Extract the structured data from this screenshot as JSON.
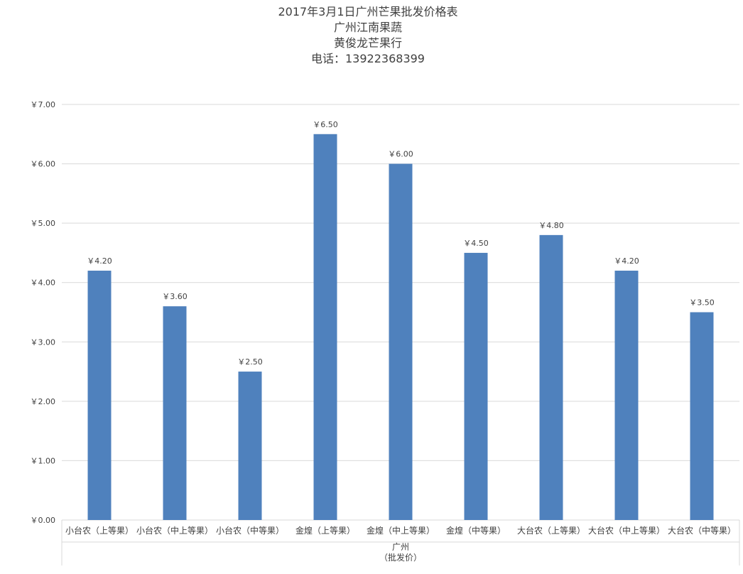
{
  "chart_data": {
    "type": "bar",
    "title_lines": [
      "2017年3月1日广州芒果批发价格表",
      "广州江南果蔬",
      "黄俊龙芒果行",
      "电话：13922368399"
    ],
    "categories": [
      "小台农（上等果）",
      "小台农（中上等果）",
      "小台农（中等果）",
      "金煌（上等果）",
      "金煌（中上等果）",
      "金煌（中等果）",
      "大台农（上等果）",
      "大台农（中上等果）",
      "大台农（中等果）"
    ],
    "values": [
      4.2,
      3.6,
      2.5,
      6.5,
      6.0,
      4.5,
      4.8,
      4.2,
      3.5
    ],
    "data_labels": [
      "￥4.20",
      "￥3.60",
      "￥2.50",
      "￥6.50",
      "￥6.00",
      "￥4.50",
      "￥4.80",
      "￥4.20",
      "￥3.50"
    ],
    "group_label_lines": [
      "广州",
      "（批发价）"
    ],
    "y_ticks": [
      "￥0.00",
      "￥1.00",
      "￥2.00",
      "￥3.00",
      "￥4.00",
      "￥5.00",
      "￥6.00",
      "￥7.00"
    ],
    "ylim": [
      0,
      7
    ],
    "grid": true,
    "legend": "none",
    "bar_color": "#4f81bd",
    "grid_color": "#d9d9d9",
    "text_color": "#404040"
  }
}
